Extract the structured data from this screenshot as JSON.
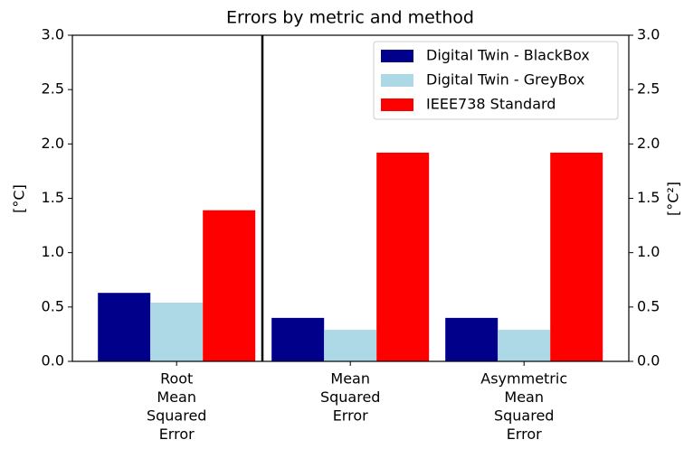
{
  "chart_data": {
    "type": "bar",
    "title": "Errors by metric and method",
    "ylabel": "[°C]",
    "y2label": "[°C²]",
    "categories": [
      [
        "Root",
        "Mean",
        "Squared",
        "Error"
      ],
      [
        "Mean",
        "Squared",
        "Error"
      ],
      [
        "Asymmetric",
        "Mean",
        "Squared",
        "Error"
      ]
    ],
    "series": [
      {
        "name": "Digital Twin - BlackBox",
        "color": "#00008b",
        "values": [
          0.63,
          0.4,
          0.4
        ]
      },
      {
        "name": "Digital Twin - GreyBox",
        "color": "#add8e6",
        "values": [
          0.54,
          0.29,
          0.29
        ]
      },
      {
        "name": "IEEE738 Standard",
        "color": "#ff0000",
        "values": [
          1.39,
          1.92,
          1.92
        ]
      }
    ],
    "ylim": [
      0,
      3
    ],
    "yticks": [
      {
        "value": 0,
        "label": "0.0"
      },
      {
        "value": 0.5,
        "label": "0.5"
      },
      {
        "value": 1,
        "label": "1.0"
      },
      {
        "value": 1.5,
        "label": "1.5"
      },
      {
        "value": 2,
        "label": "2.0"
      },
      {
        "value": 2.5,
        "label": "2.5"
      },
      {
        "value": 3,
        "label": "3.0"
      }
    ],
    "y2lim": [
      0,
      3
    ],
    "y2ticks": [
      {
        "value": 0,
        "label": "0.0"
      },
      {
        "value": 0.5,
        "label": "0.5"
      },
      {
        "value": 1,
        "label": "1.0"
      },
      {
        "value": 1.5,
        "label": "1.5"
      },
      {
        "value": 2,
        "label": "2.0"
      },
      {
        "value": 2.5,
        "label": "2.5"
      },
      {
        "value": 3,
        "label": "3.0"
      }
    ],
    "legend": "upper right"
  }
}
